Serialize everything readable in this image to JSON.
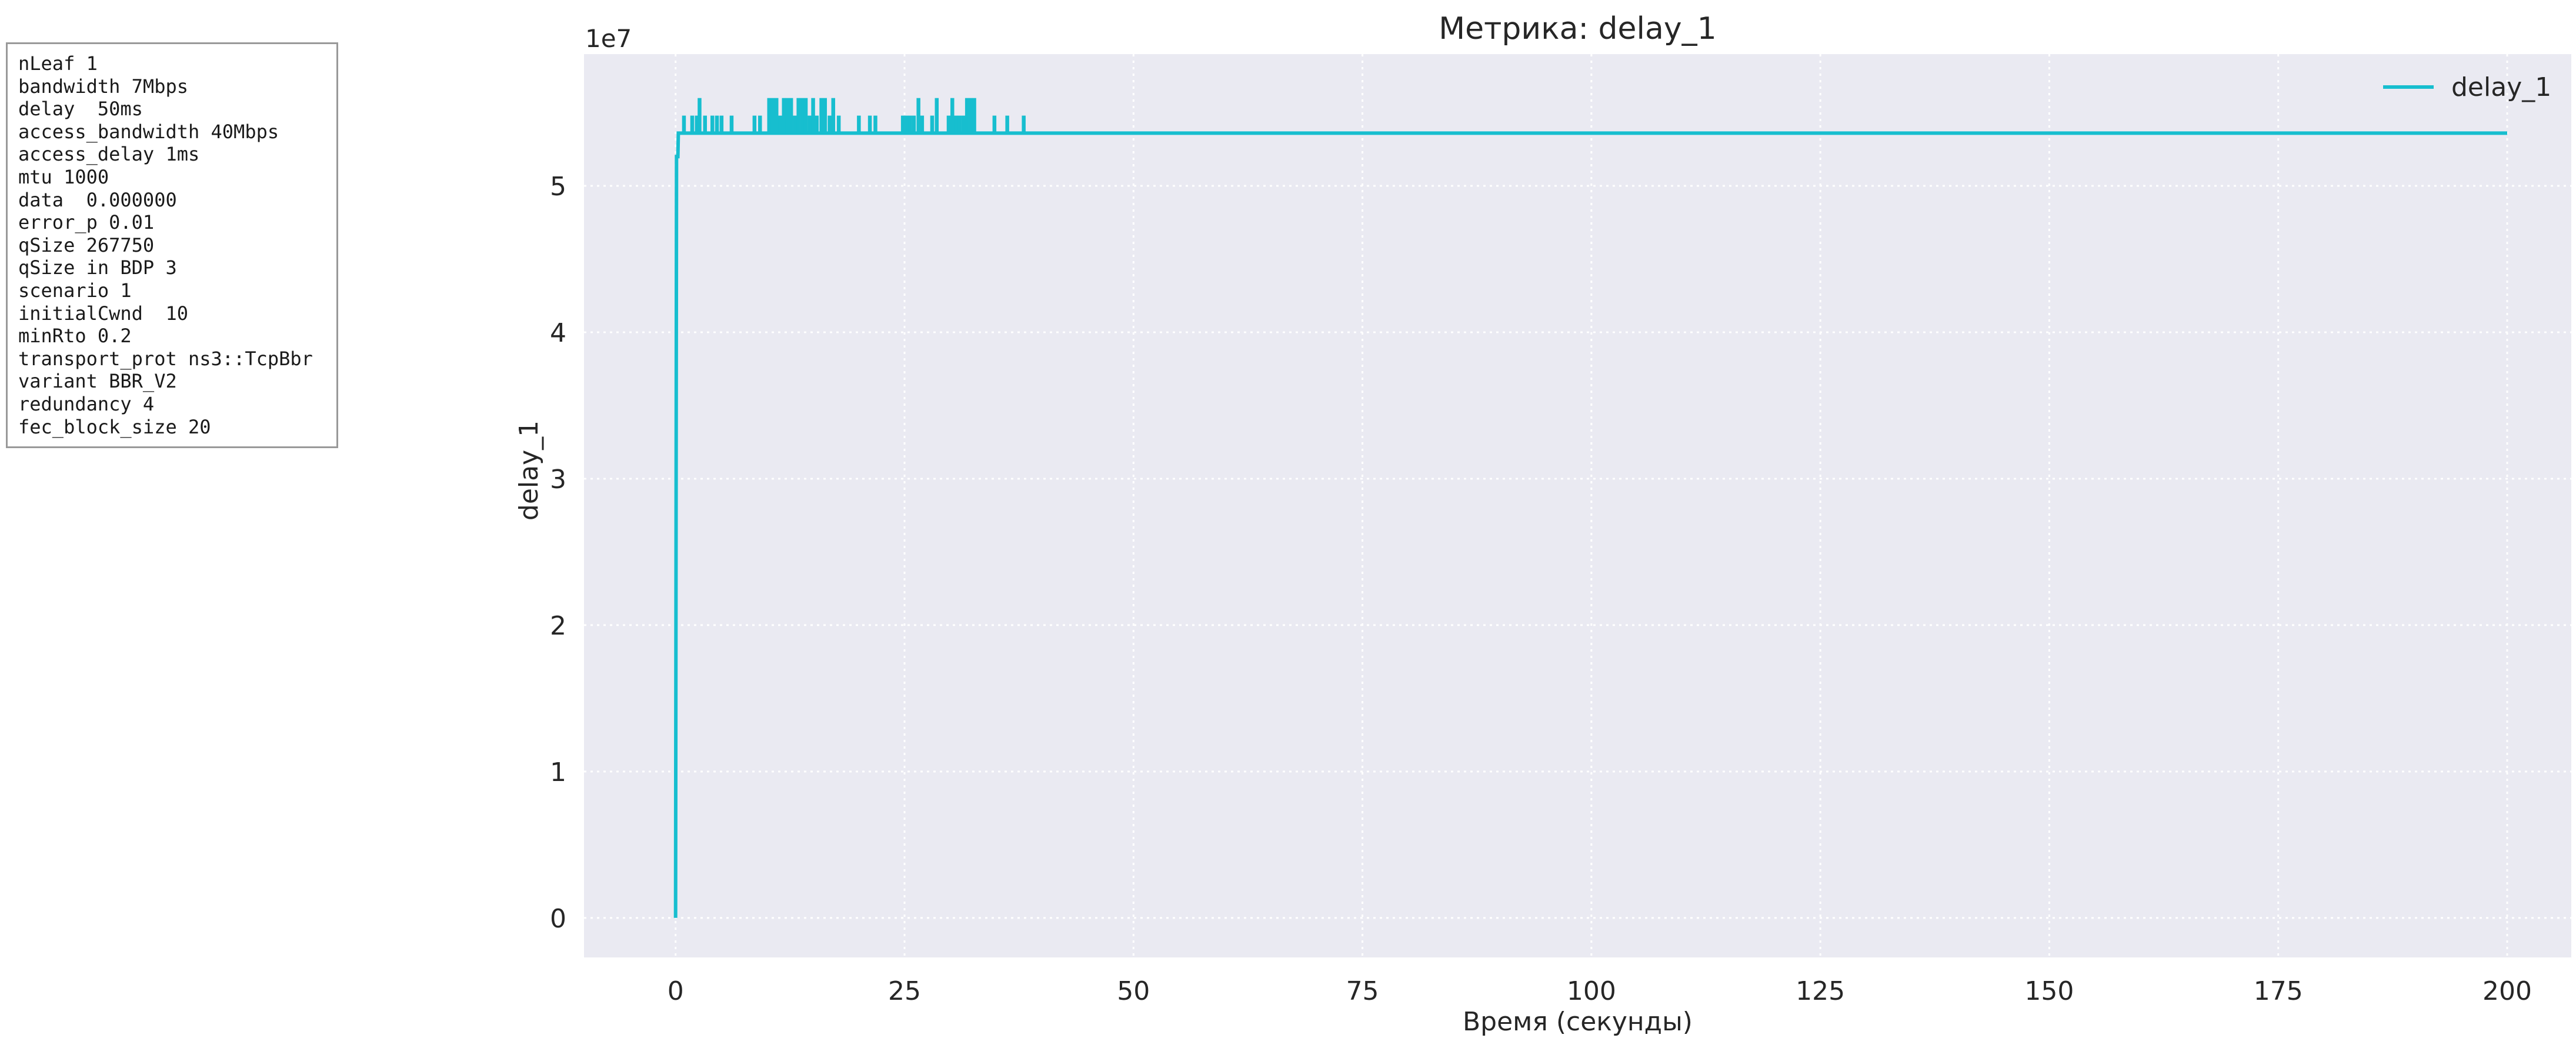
{
  "params": [
    "nLeaf 1",
    "bandwidth 7Mbps",
    "delay  50ms",
    "access_bandwidth 40Mbps",
    "access_delay 1ms",
    "mtu 1000",
    "data  0.000000",
    "error_p 0.01",
    "qSize 267750",
    "qSize in BDP 3",
    "scenario 1",
    "initialCwnd  10",
    "minRto 0.2",
    "transport_prot ns3::TcpBbr",
    "variant BBR_V2",
    "redundancy 4",
    "fec_block_size 20"
  ],
  "chart_data": {
    "type": "line",
    "title": "Метрика: delay_1",
    "xlabel": "Время (секунды)",
    "ylabel": "delay_1",
    "y_offset_label": "1e7",
    "xlim": [
      -10,
      207
    ],
    "ylim": [
      -2700000,
      59000000
    ],
    "x_ticks": [
      0,
      25,
      50,
      75,
      100,
      125,
      150,
      175,
      200
    ],
    "x_tick_labels": [
      "0",
      "25",
      "50",
      "75",
      "100",
      "125",
      "150",
      "175",
      "200"
    ],
    "y_ticks": [
      0,
      10000000,
      20000000,
      30000000,
      40000000,
      50000000
    ],
    "y_tick_labels": [
      "0",
      "1",
      "2",
      "3",
      "4",
      "5"
    ],
    "grid": true,
    "legend_position": "upper-right",
    "colors": {
      "line": "#17becf",
      "plot_background": "#eaeaf2",
      "grid": "#ffffff"
    },
    "series": [
      {
        "name": "delay_1",
        "base_level": 53600000,
        "points": [
          [
            0,
            0
          ],
          [
            0.1,
            52000000
          ],
          [
            0.25,
            52000000
          ],
          [
            0.3,
            53600000
          ],
          [
            200,
            53600000
          ]
        ],
        "spikes": [
          {
            "x": 0.9,
            "y": 54800000
          },
          {
            "x": 1.8,
            "y": 54800000
          },
          {
            "x": 2.3,
            "y": 54800000
          },
          {
            "x": 2.6,
            "y": 56000000
          },
          {
            "x": 3.2,
            "y": 54800000
          },
          {
            "x": 4.0,
            "y": 54800000
          },
          {
            "x": 4.5,
            "y": 54800000
          },
          {
            "x": 5.0,
            "y": 54800000
          },
          {
            "x": 6.1,
            "y": 54800000
          },
          {
            "x": 8.6,
            "y": 54800000
          },
          {
            "x": 9.2,
            "y": 54800000
          },
          {
            "x": 10.2,
            "y": 56000000
          },
          {
            "x": 10.6,
            "y": 56000000
          },
          {
            "x": 11.0,
            "y": 56000000
          },
          {
            "x": 11.4,
            "y": 54800000
          },
          {
            "x": 11.8,
            "y": 56000000
          },
          {
            "x": 12.2,
            "y": 56000000
          },
          {
            "x": 12.6,
            "y": 56000000
          },
          {
            "x": 13.0,
            "y": 54800000
          },
          {
            "x": 13.4,
            "y": 56000000
          },
          {
            "x": 13.8,
            "y": 56000000
          },
          {
            "x": 14.2,
            "y": 56000000
          },
          {
            "x": 14.6,
            "y": 54800000
          },
          {
            "x": 15.0,
            "y": 56000000
          },
          {
            "x": 15.4,
            "y": 54800000
          },
          {
            "x": 15.9,
            "y": 56000000
          },
          {
            "x": 16.3,
            "y": 56000000
          },
          {
            "x": 16.8,
            "y": 54800000
          },
          {
            "x": 17.2,
            "y": 56000000
          },
          {
            "x": 17.8,
            "y": 54800000
          },
          {
            "x": 20.0,
            "y": 54800000
          },
          {
            "x": 21.2,
            "y": 54800000
          },
          {
            "x": 21.8,
            "y": 54800000
          },
          {
            "x": 24.8,
            "y": 54800000
          },
          {
            "x": 25.2,
            "y": 54800000
          },
          {
            "x": 25.6,
            "y": 54800000
          },
          {
            "x": 26.0,
            "y": 54800000
          },
          {
            "x": 26.5,
            "y": 56000000
          },
          {
            "x": 26.9,
            "y": 54800000
          },
          {
            "x": 28.0,
            "y": 54800000
          },
          {
            "x": 28.5,
            "y": 56000000
          },
          {
            "x": 29.8,
            "y": 54800000
          },
          {
            "x": 30.2,
            "y": 56000000
          },
          {
            "x": 30.6,
            "y": 54800000
          },
          {
            "x": 31.0,
            "y": 54800000
          },
          {
            "x": 31.4,
            "y": 54800000
          },
          {
            "x": 31.8,
            "y": 56000000
          },
          {
            "x": 32.2,
            "y": 56000000
          },
          {
            "x": 32.6,
            "y": 56000000
          },
          {
            "x": 34.8,
            "y": 54800000
          },
          {
            "x": 36.2,
            "y": 54800000
          },
          {
            "x": 38.0,
            "y": 54800000
          }
        ]
      }
    ]
  }
}
